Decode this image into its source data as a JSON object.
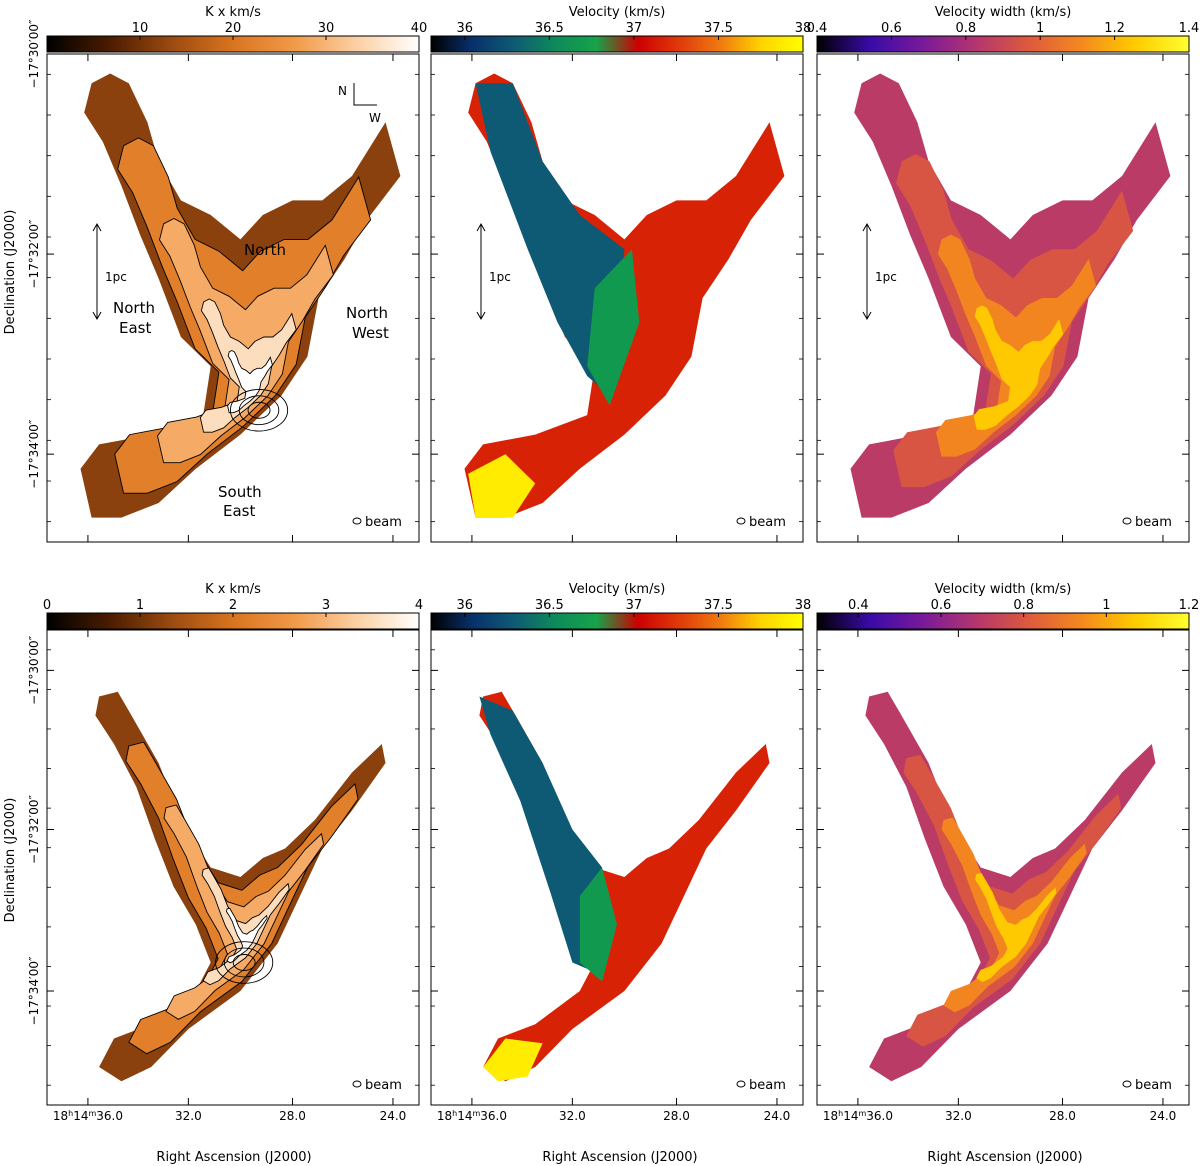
{
  "figure": {
    "ylabel": "Declination (J2000)",
    "xlabel": "Right Ascension (J2000)",
    "dec_ticks": [
      "−17°30′00″",
      "−17°32′00″",
      "−17°34′00″"
    ],
    "ra_ticks": [
      "18h14m36.0",
      "32.0",
      "28.0",
      "24.0"
    ],
    "ra_first_tick": {
      "h": "18",
      "hs": "h",
      "m": "14",
      "ms": "m",
      "sec": "36",
      "frac": ".0"
    },
    "ra_sec_ticks": [
      {
        "sec": "32",
        "frac": ".0"
      },
      {
        "sec": "28",
        "frac": ".0"
      },
      {
        "sec": "24",
        "frac": ".0"
      }
    ],
    "beam_label": "beam",
    "scale_label": "1pc",
    "compass": {
      "n": "N",
      "w": "W"
    },
    "regions": {
      "north": "North",
      "north_east": [
        "North",
        "East"
      ],
      "north_west": [
        "North",
        "West"
      ],
      "south_east": [
        "South",
        "East"
      ]
    }
  },
  "chart_data": [
    {
      "type": "heatmap",
      "panel": "top-left",
      "quantity": "integrated intensity",
      "colorbar_label": "K x km/s",
      "colormap": "heat",
      "range": [
        0,
        40
      ],
      "colorbar_ticks": [
        "10",
        "20",
        "30",
        "40"
      ],
      "contours": true,
      "annotations": [
        "North",
        "North East",
        "North West",
        "South East",
        "1pc",
        "beam",
        "N",
        "W"
      ]
    },
    {
      "type": "heatmap",
      "panel": "top-middle",
      "quantity": "centroid velocity",
      "colorbar_label": "Velocity (km/s)",
      "colormap": "velocity",
      "range": [
        35.8,
        38
      ],
      "colorbar_ticks": [
        "36",
        "36.5",
        "37",
        "37.5",
        "38"
      ],
      "annotations": [
        "1pc",
        "beam"
      ]
    },
    {
      "type": "heatmap",
      "panel": "top-right",
      "quantity": "velocity width",
      "colorbar_label": "Velocity width (km/s)",
      "colormap": "plasma",
      "range": [
        0.4,
        1.4
      ],
      "colorbar_ticks": [
        "0.4",
        "0.6",
        "0.8",
        "1",
        "1.2",
        "1.4"
      ],
      "annotations": [
        "1pc",
        "beam"
      ]
    },
    {
      "type": "heatmap",
      "panel": "bottom-left",
      "quantity": "integrated intensity",
      "colorbar_label": "K x km/s",
      "colormap": "heat",
      "range": [
        0,
        4
      ],
      "colorbar_ticks": [
        "0",
        "1",
        "2",
        "3",
        "4"
      ],
      "contours": true,
      "annotations": [
        "beam"
      ]
    },
    {
      "type": "heatmap",
      "panel": "bottom-middle",
      "quantity": "centroid velocity",
      "colorbar_label": "Velocity (km/s)",
      "colormap": "velocity",
      "range": [
        35.8,
        38
      ],
      "colorbar_ticks": [
        "36",
        "36.5",
        "37",
        "37.5",
        "38"
      ],
      "annotations": [
        "beam"
      ]
    },
    {
      "type": "heatmap",
      "panel": "bottom-right",
      "quantity": "velocity width",
      "colorbar_label": "Velocity width (km/s)",
      "colormap": "plasma",
      "range": [
        0.3,
        1.2
      ],
      "colorbar_ticks": [
        "0.4",
        "0.6",
        "0.8",
        "1",
        "1.2"
      ],
      "annotations": [
        "beam"
      ]
    }
  ],
  "colors": {
    "heat": [
      "#000000",
      "#4a1c00",
      "#9a4a10",
      "#d9741f",
      "#f29a48",
      "#fbd0a4",
      "#ffffff"
    ],
    "velocity": [
      "#000000",
      "#08306b",
      "#0e5a74",
      "#0d8a5a",
      "#16a34a",
      "#cc0000",
      "#e03a0a",
      "#f07a10",
      "#ffd400",
      "#ffff00"
    ],
    "plasma": [
      "#000000",
      "#3a0aa8",
      "#7a1a9a",
      "#b5366e",
      "#de5a3c",
      "#f58a1e",
      "#ffcc00",
      "#ffff30"
    ]
  }
}
